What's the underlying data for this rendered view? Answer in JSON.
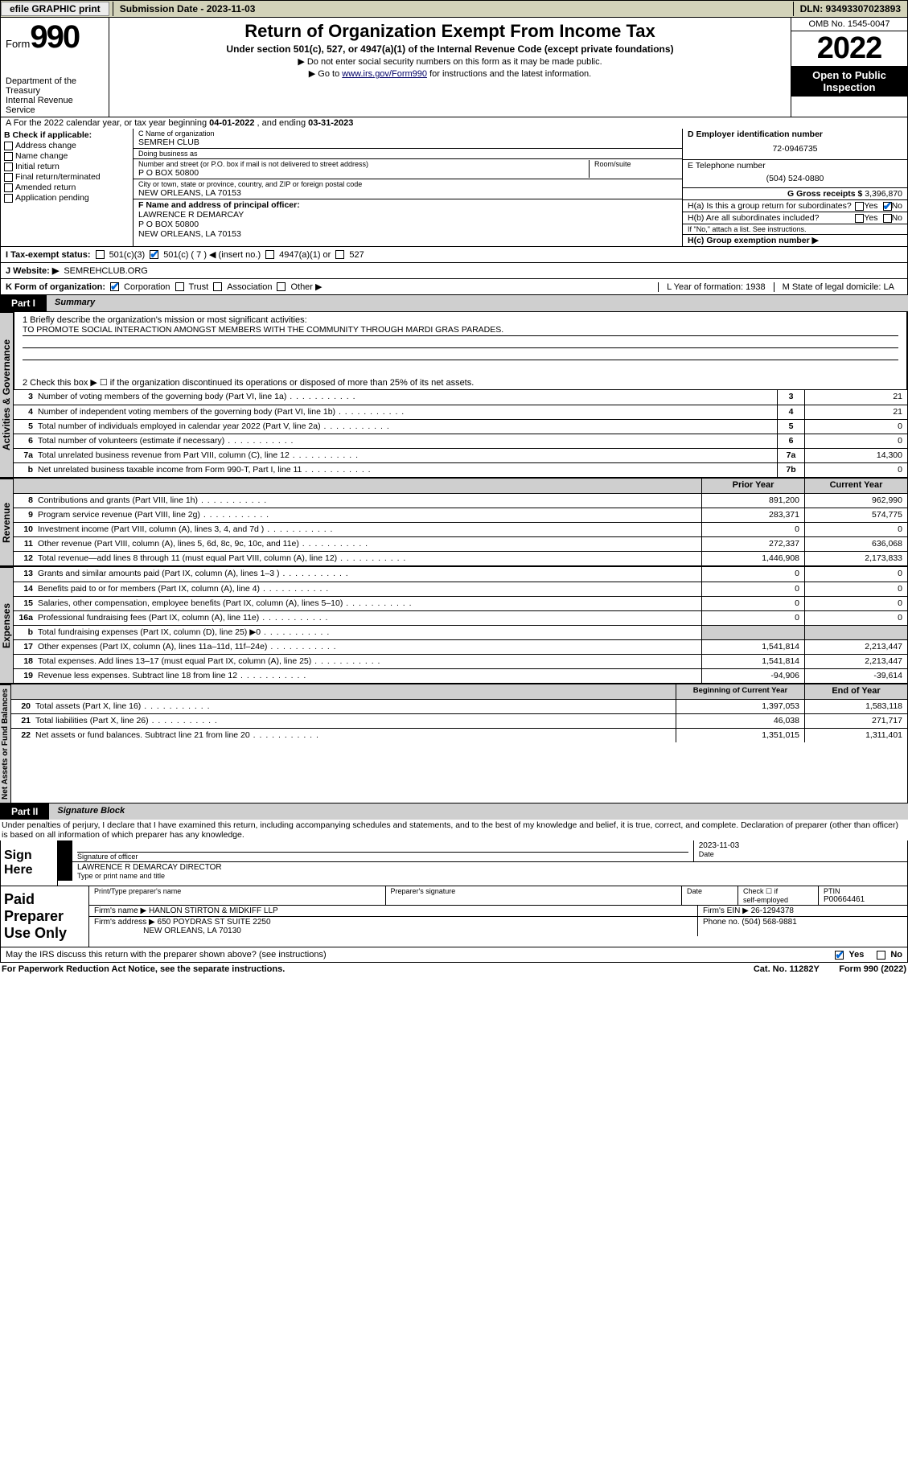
{
  "topbar": {
    "efile": "efile GRAPHIC print",
    "submission_label": "Submission Date - 2023-11-03",
    "dln": "DLN: 93493307023893"
  },
  "header": {
    "form_label": "Form",
    "form_num": "990",
    "dept": "Department of the Treasury",
    "irs": "Internal Revenue Service",
    "title": "Return of Organization Exempt From Income Tax",
    "sub1": "Under section 501(c), 527, or 4947(a)(1) of the Internal Revenue Code (except private foundations)",
    "sub2": "▶ Do not enter social security numbers on this form as it may be made public.",
    "sub3_pre": "▶ Go to ",
    "sub3_link": "www.irs.gov/Form990",
    "sub3_post": " for instructions and the latest information.",
    "omb": "OMB No. 1545-0047",
    "year": "2022",
    "open_pub": "Open to Public Inspection"
  },
  "rowA": {
    "text_pre": "A For the 2022 calendar year, or tax year beginning ",
    "begin": "04-01-2022",
    "mid": "   , and ending ",
    "end": "03-31-2023"
  },
  "colB": {
    "title": "B Check if applicable:",
    "items": [
      "Address change",
      "Name change",
      "Initial return",
      "Final return/terminated",
      "Amended return",
      "Application pending"
    ]
  },
  "colC": {
    "name_lbl": "C Name of organization",
    "name": "SEMREH CLUB",
    "dba_lbl": "Doing business as",
    "dba": "",
    "addr_lbl": "Number and street (or P.O. box if mail is not delivered to street address)",
    "room_lbl": "Room/suite",
    "addr": "P O BOX 50800",
    "city_lbl": "City or town, state or province, country, and ZIP or foreign postal code",
    "city": "NEW ORLEANS, LA  70153",
    "f_lbl": "F Name and address of principal officer:",
    "f_name": "LAWRENCE R DEMARCAY",
    "f_addr1": "P O BOX 50800",
    "f_addr2": "NEW ORLEANS, LA  70153"
  },
  "colD": {
    "d_lbl": "D Employer identification number",
    "d_val": "72-0946735",
    "e_lbl": "E Telephone number",
    "e_val": "(504) 524-0880",
    "g_lbl": "G Gross receipts $ ",
    "g_val": "3,396,870",
    "ha": "H(a)  Is this a group return for subordinates?",
    "hb": "H(b)  Are all subordinates included?",
    "hb2": "If \"No,\" attach a list. See instructions.",
    "hc": "H(c)  Group exemption number ▶",
    "yes": "Yes",
    "no": "No"
  },
  "rowI": {
    "label": "I   Tax-exempt status:",
    "o1": "501(c)(3)",
    "o2": "501(c) ( 7 ) ◀ (insert no.)",
    "o3": "4947(a)(1) or",
    "o4": "527"
  },
  "rowJ": {
    "label": "J   Website: ▶",
    "val": " SEMREHCLUB.ORG"
  },
  "rowK": {
    "label": "K Form of organization:",
    "o1": "Corporation",
    "o2": "Trust",
    "o3": "Association",
    "o4": "Other ▶",
    "l": "L Year of formation: 1938",
    "m": "M State of legal domicile: LA"
  },
  "partI": {
    "tag": "Part I",
    "title": "Summary"
  },
  "summary1": {
    "l1": "1   Briefly describe the organization's mission or most significant activities:",
    "mission": "TO PROMOTE SOCIAL INTERACTION AMONGST MEMBERS WITH THE COMMUNITY THROUGH MARDI GRAS PARADES.",
    "l2": "2   Check this box ▶ ☐  if the organization discontinued its operations or disposed of more than 25% of its net assets."
  },
  "gov_label": "Activities & Governance",
  "gov_lines": [
    {
      "n": "3",
      "t": "Number of voting members of the governing body (Part VI, line 1a)",
      "bn": "3",
      "v": "21"
    },
    {
      "n": "4",
      "t": "Number of independent voting members of the governing body (Part VI, line 1b)",
      "bn": "4",
      "v": "21"
    },
    {
      "n": "5",
      "t": "Total number of individuals employed in calendar year 2022 (Part V, line 2a)",
      "bn": "5",
      "v": "0"
    },
    {
      "n": "6",
      "t": "Total number of volunteers (estimate if necessary)",
      "bn": "6",
      "v": "0"
    },
    {
      "n": "7a",
      "t": "Total unrelated business revenue from Part VIII, column (C), line 12",
      "bn": "7a",
      "v": "14,300"
    },
    {
      "n": "b",
      "t": "Net unrelated business taxable income from Form 990-T, Part I, line 11",
      "bn": "7b",
      "v": "0"
    }
  ],
  "rev_label": "Revenue",
  "rev_head": {
    "p": "Prior Year",
    "c": "Current Year"
  },
  "rev_lines": [
    {
      "n": "8",
      "t": "Contributions and grants (Part VIII, line 1h)",
      "p": "891,200",
      "c": "962,990"
    },
    {
      "n": "9",
      "t": "Program service revenue (Part VIII, line 2g)",
      "p": "283,371",
      "c": "574,775"
    },
    {
      "n": "10",
      "t": "Investment income (Part VIII, column (A), lines 3, 4, and 7d )",
      "p": "0",
      "c": "0"
    },
    {
      "n": "11",
      "t": "Other revenue (Part VIII, column (A), lines 5, 6d, 8c, 9c, 10c, and 11e)",
      "p": "272,337",
      "c": "636,068"
    },
    {
      "n": "12",
      "t": "Total revenue—add lines 8 through 11 (must equal Part VIII, column (A), line 12)",
      "p": "1,446,908",
      "c": "2,173,833"
    }
  ],
  "exp_label": "Expenses",
  "exp_lines": [
    {
      "n": "13",
      "t": "Grants and similar amounts paid (Part IX, column (A), lines 1–3 )",
      "p": "0",
      "c": "0"
    },
    {
      "n": "14",
      "t": "Benefits paid to or for members (Part IX, column (A), line 4)",
      "p": "0",
      "c": "0"
    },
    {
      "n": "15",
      "t": "Salaries, other compensation, employee benefits (Part IX, column (A), lines 5–10)",
      "p": "0",
      "c": "0"
    },
    {
      "n": "16a",
      "t": "Professional fundraising fees (Part IX, column (A), line 11e)",
      "p": "0",
      "c": "0"
    },
    {
      "n": "b",
      "t": "Total fundraising expenses (Part IX, column (D), line 25) ▶0",
      "p": "",
      "c": ""
    },
    {
      "n": "17",
      "t": "Other expenses (Part IX, column (A), lines 11a–11d, 11f–24e)",
      "p": "1,541,814",
      "c": "2,213,447"
    },
    {
      "n": "18",
      "t": "Total expenses. Add lines 13–17 (must equal Part IX, column (A), line 25)",
      "p": "1,541,814",
      "c": "2,213,447"
    },
    {
      "n": "19",
      "t": "Revenue less expenses. Subtract line 18 from line 12",
      "p": "-94,906",
      "c": "-39,614"
    }
  ],
  "na_label": "Net Assets or Fund Balances",
  "na_head": {
    "p": "Beginning of Current Year",
    "c": "End of Year"
  },
  "na_lines": [
    {
      "n": "20",
      "t": "Total assets (Part X, line 16)",
      "p": "1,397,053",
      "c": "1,583,118"
    },
    {
      "n": "21",
      "t": "Total liabilities (Part X, line 26)",
      "p": "46,038",
      "c": "271,717"
    },
    {
      "n": "22",
      "t": "Net assets or fund balances. Subtract line 21 from line 20",
      "p": "1,351,015",
      "c": "1,311,401"
    }
  ],
  "partII": {
    "tag": "Part II",
    "title": "Signature Block"
  },
  "sigintro": "Under penalties of perjury, I declare that I have examined this return, including accompanying schedules and statements, and to the best of my knowledge and belief, it is true, correct, and complete. Declaration of preparer (other than officer) is based on all information of which preparer has any knowledge.",
  "sign": {
    "here": "Sign Here",
    "sig_lbl": "Signature of officer",
    "date_lbl": "Date",
    "date": "2023-11-03",
    "name": "LAWRENCE R DEMARCAY DIRECTOR",
    "name_lbl": "Type or print name and title"
  },
  "prep": {
    "lab": "Paid Preparer Use Only",
    "h1": "Print/Type preparer's name",
    "h2": "Preparer's signature",
    "h3": "Date",
    "h4a": "Check ☐ if",
    "h4b": "self-employed",
    "h5": "PTIN",
    "ptin": "P00664461",
    "firm_lbl": "Firm's name    ▶",
    "firm": "HANLON STIRTON & MIDKIFF LLP",
    "ein_lbl": "Firm's EIN ▶",
    "ein": "26-1294378",
    "addr_lbl": "Firm's address ▶",
    "addr1": "650 POYDRAS ST SUITE 2250",
    "addr2": "NEW ORLEANS, LA  70130",
    "phone_lbl": "Phone no. ",
    "phone": "(504) 568-9881"
  },
  "may": {
    "q": "May the IRS discuss this return with the preparer shown above? (see instructions)",
    "yes": "Yes",
    "no": "No"
  },
  "footer": {
    "left": "For Paperwork Reduction Act Notice, see the separate instructions.",
    "mid": "Cat. No. 11282Y",
    "right": "Form 990 (2022)"
  }
}
